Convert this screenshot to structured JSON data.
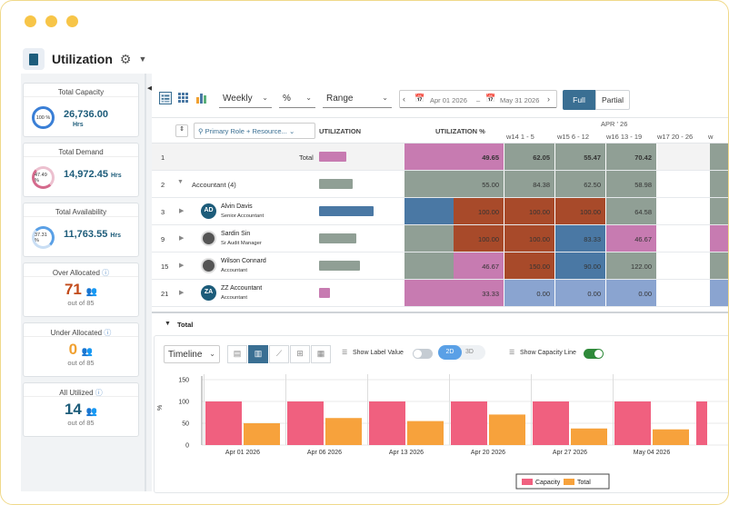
{
  "app": {
    "title": "Utilization",
    "gear_icon": "gear-icon",
    "caret_icon": "caret-down-icon"
  },
  "summary": {
    "capacity": {
      "title": "Total Capacity",
      "ring": "100 %",
      "value": "26,736.00",
      "unit": "Hrs",
      "ring_color": "#3a7fd6"
    },
    "demand": {
      "title": "Total Demand",
      "ring": "47.49 %",
      "value": "14,972.45",
      "unit": "Hrs",
      "ring_color": "#d46a8c"
    },
    "availability": {
      "title": "Total Availability",
      "ring": "37.31 %",
      "value": "11,763.55",
      "unit": "Hrs",
      "ring_color": "#5aa0e6"
    },
    "over": {
      "title": "Over Allocated",
      "value": "71",
      "of": "out of 85",
      "color": "#c24a1a"
    },
    "under": {
      "title": "Under Allocated",
      "value": "0",
      "of": "out of 85",
      "color": "#f0a030"
    },
    "all": {
      "title": "All Utilized",
      "value": "14",
      "of": "out of 85",
      "color": "#1d5c7a"
    }
  },
  "toolbar": {
    "period": "Weekly",
    "unit": "%",
    "range": "Range",
    "date_from": "Apr 01 2026",
    "date_to": "May 31 2026",
    "full": "Full",
    "partial": "Partial"
  },
  "grid": {
    "group_by": "Primary Role + Resource...",
    "col_util": "UTILIZATION",
    "col_util_pct": "UTILIZATION %",
    "month": "APR ' 26",
    "weeks": [
      "w14 1 - 5",
      "w15 6 - 12",
      "w16 13 - 19",
      "w17 20 - 26"
    ],
    "rows": [
      {
        "num": "1",
        "label": "Total",
        "util": 47.49,
        "util_label": "47.49",
        "weeks": [
          "49.65",
          "62.05",
          "55.47",
          "70.42"
        ],
        "bar_color": "#c77bb1",
        "pct_color": "#c77bb1",
        "week_colors": [
          "#c77bb1",
          "#909f95",
          "#909f95",
          "#909f95"
        ]
      },
      {
        "num": "2",
        "label": "Accountant (4)",
        "util": 57.24,
        "util_label": "57.24",
        "weeks": [
          "55.00",
          "84.38",
          "62.50",
          "58.98"
        ],
        "bar_color": "#909f95",
        "pct_color": "#909f95",
        "week_colors": [
          "#909f95",
          "#909f95",
          "#909f95",
          "#909f95"
        ]
      },
      {
        "num": "3",
        "initials": "AD",
        "name": "Alvin Davis",
        "role": "Senior Accountant",
        "util": 93.18,
        "util_label": "93.18",
        "weeks": [
          "100.00",
          "100.00",
          "100.00",
          "64.58"
        ],
        "bar_color": "#4a78a4",
        "pct_color": "#4a78a4",
        "week_colors": [
          "#a84a2a",
          "#a84a2a",
          "#a84a2a",
          "#909f95"
        ]
      },
      {
        "num": "9",
        "name": "Sardin Sin",
        "role": "Sr Audit Manager",
        "util": 63.4,
        "util_label": "63.40",
        "weeks": [
          "100.00",
          "100.00",
          "83.33",
          "46.67"
        ],
        "bar_color": "#909f95",
        "pct_color": "#909f95",
        "week_colors": [
          "#a84a2a",
          "#a84a2a",
          "#4a78a4",
          "#c77bb1"
        ]
      },
      {
        "num": "15",
        "name": "Wilson Connard",
        "role": "Accountant",
        "util": 70.93,
        "util_label": "70.93",
        "weeks": [
          "46.67",
          "150.00",
          "90.00",
          "122.00"
        ],
        "bar_color": "#909f95",
        "pct_color": "#909f95",
        "week_colors": [
          "#c77bb1",
          "#a84a2a",
          "#4a78a4",
          "#909f95"
        ]
      },
      {
        "num": "21",
        "initials": "ZA",
        "name": "ZZ Accountant",
        "role": "Accountant",
        "util": 19.07,
        "util_label": "19.07",
        "weeks": [
          "33.33",
          "0.00",
          "0.00",
          "0.00"
        ],
        "bar_color": "#c77bb1",
        "pct_color": "#c77bb1",
        "week_colors": [
          "#c77bb1",
          "#8aa4d0",
          "#8aa4d0",
          "#8aa4d0"
        ]
      }
    ]
  },
  "bottom": {
    "title": "Total",
    "view": "Timeline",
    "show_label_value": "Show Label Value",
    "mode_2d": "2D",
    "mode_3d": "3D",
    "show_capacity_line": "Show Capacity Line"
  },
  "chart_data": {
    "type": "bar",
    "categories": [
      "Apr 01 2026",
      "Apr 06 2026",
      "Apr 13 2026",
      "Apr 20 2026",
      "Apr 27 2026",
      "May 04 2026"
    ],
    "series": [
      {
        "name": "Capacity",
        "values": [
          100,
          100,
          100,
          100,
          100,
          100
        ],
        "color": "#f0607f"
      },
      {
        "name": "Total",
        "values": [
          50,
          62,
          55,
          70,
          38,
          36
        ],
        "color": "#f7a23c"
      }
    ],
    "ylabel": "%",
    "yticks": [
      "0",
      "50",
      "100",
      "150"
    ],
    "ylim": [
      0,
      150
    ],
    "legend": "bottom"
  }
}
